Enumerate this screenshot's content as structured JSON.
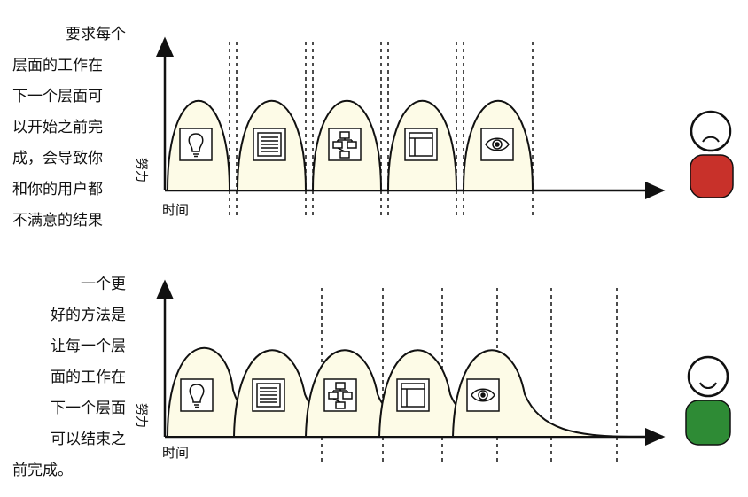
{
  "top_panel": {
    "text_lines": [
      "要求每个",
      "层面的工作在",
      "下一个层面可",
      "以开始之前完",
      "成，会导致你",
      "和你的用户都",
      "不满意的结果"
    ],
    "x_label": "时间",
    "y_label": "努力",
    "user_state": "unhappy",
    "user_color": "#c8312a"
  },
  "bottom_panel": {
    "text_lines": [
      "一个更",
      "好的方法是",
      "让每一个层",
      "面的工作在",
      "下一个层面",
      "可以结束之",
      "前完成。"
    ],
    "x_label": "时间",
    "y_label": "努力",
    "user_state": "happy",
    "user_color": "#2e8b35"
  },
  "stage_icons": [
    "lightbulb-icon",
    "list-icon",
    "flowchart-icon",
    "wireframe-icon",
    "eye-icon"
  ]
}
